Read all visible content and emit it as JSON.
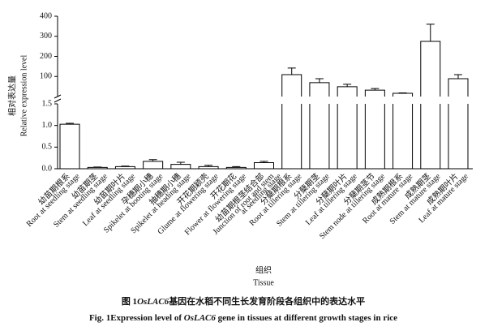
{
  "chart_data": {
    "type": "broken-bar",
    "y_label_zh": "相对表达量",
    "y_label_en": "Relative expression level",
    "x_label_zh": "组织",
    "x_label_en": "Tissue",
    "caption_zh": [
      "图 1",
      "OsLAC6",
      "基因在水稻不同生长发育阶段各组织中的表达水平"
    ],
    "caption_en": [
      "Fig. 1",
      "Expression level of ",
      "OsLAC6",
      " gene in tissues at different growth stages in rice"
    ],
    "categories_zh": [
      "幼苗期根系",
      "幼苗期茎",
      "幼苗期叶片",
      "孕穗期小穗",
      "抽穗期小穗",
      "开花期颖壳",
      "开花期花",
      "幼苗期根茎结合部",
      "分蘖期根系",
      "分蘖期茎",
      "分蘖期叶片",
      "分蘖期茎节",
      "成熟期根系",
      "成熟期茎",
      "成熟期叶片"
    ],
    "categories": [
      "Root at seedling stage",
      "Stem at seedling stage",
      "Leaf at seedling stage",
      "Spikelet at booting stage",
      "Spikelet at heading stage",
      "Glume at flowering stage",
      "Flower at flowering stage",
      [
        "Junction of root and stem",
        "at seedling stage"
      ],
      "Root at tillering stage",
      "Stem at tillering stage",
      "Leaf at tillering stage",
      "Stem node at tillering stage",
      "Root at mature stage",
      "Stem at mature stage",
      "Leaf at mature stage"
    ],
    "values": [
      1.03,
      0.03,
      0.05,
      0.17,
      0.1,
      0.05,
      0.03,
      0.14,
      109,
      69,
      49,
      32,
      16,
      275,
      89
    ],
    "errors": [
      0.02,
      0.01,
      0.01,
      0.04,
      0.05,
      0.03,
      0.02,
      0.03,
      33,
      20,
      12,
      8,
      2,
      85,
      20
    ],
    "color": "#ffffff",
    "segments": [
      {
        "ylim": [
          0,
          1.5
        ],
        "yticks": [
          {
            "value": 0,
            "label": "0.0"
          },
          {
            "value": 0.5,
            "label": "0.5"
          },
          {
            "value": 1,
            "label": "1.0"
          },
          {
            "value": 1.5,
            "label": "1.5"
          }
        ]
      },
      {
        "ylim": [
          0,
          400
        ],
        "yticks": [
          100,
          200,
          300,
          400
        ]
      }
    ]
  }
}
